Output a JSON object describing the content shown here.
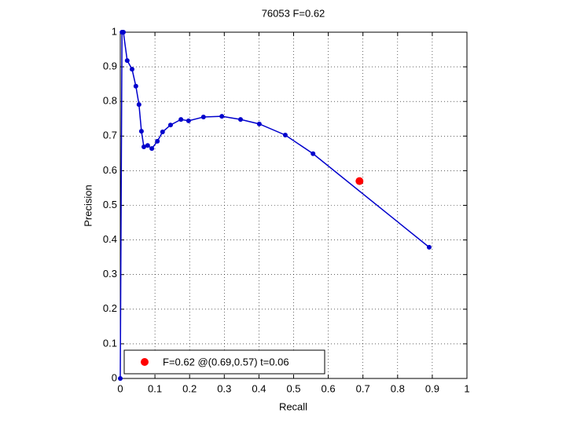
{
  "chart_data": {
    "type": "line",
    "title": "76053 F=0.62",
    "xlabel": "Recall",
    "ylabel": "Precision",
    "xlim": [
      0,
      1
    ],
    "ylim": [
      0,
      1
    ],
    "xticks": [
      0,
      0.1,
      0.2,
      0.3,
      0.4,
      0.5,
      0.6,
      0.7,
      0.8,
      0.9,
      1
    ],
    "yticks": [
      0,
      0.1,
      0.2,
      0.3,
      0.4,
      0.5,
      0.6,
      0.7,
      0.8,
      0.9,
      1
    ],
    "grid": true,
    "series": [
      {
        "color": "#0000cc",
        "x": [
          0,
          0.005,
          0.009,
          0.02,
          0.034,
          0.045,
          0.054,
          0.061,
          0.068,
          0.079,
          0.091,
          0.107,
          0.122,
          0.145,
          0.175,
          0.197,
          0.24,
          0.293,
          0.347,
          0.401,
          0.476,
          0.556,
          0.891
        ],
        "values": [
          0,
          1,
          1,
          0.918,
          0.893,
          0.844,
          0.791,
          0.714,
          0.669,
          0.673,
          0.664,
          0.685,
          0.712,
          0.732,
          0.748,
          0.744,
          0.755,
          0.757,
          0.748,
          0.735,
          0.703,
          0.649,
          0.379
        ]
      }
    ],
    "best": {
      "x": 0.69,
      "y": 0.57,
      "color": "#ff0000",
      "label": "F=0.62 @(0.69,0.57) t=0.06"
    },
    "legend": "lower left"
  }
}
